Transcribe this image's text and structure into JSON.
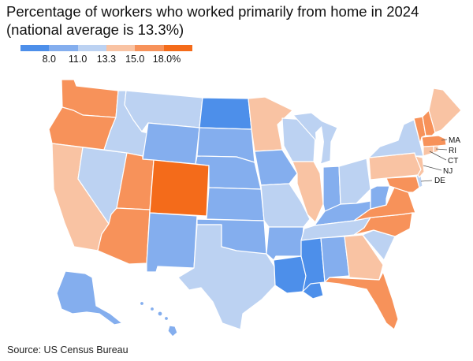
{
  "title": "Percentage of workers who worked primarily from home in 2024 (national average is 13.3%)",
  "source": "Source: US Census Bureau",
  "legend": {
    "colors": [
      "#4d8fea",
      "#84aeee",
      "#bcd2f2",
      "#f9c3a3",
      "#f7925a",
      "#f46b1a"
    ],
    "labels": [
      "8.0",
      "11.0",
      "13.3",
      "15.0",
      "18.0%"
    ]
  },
  "callouts": [
    "MA",
    "RI",
    "CT",
    "NJ",
    "DE"
  ],
  "map_data": {
    "type": "choropleth",
    "bins": [
      "< 8.0",
      "8.0–11.0",
      "11.0–13.3",
      "13.3–15.0",
      "15.0–18.0",
      "> 18.0"
    ],
    "states": {
      "WA": 4,
      "OR": 4,
      "CA": 3,
      "NV": 2,
      "ID": 2,
      "MT": 2,
      "WY": 1,
      "UT": 4,
      "AZ": 4,
      "CO": 5,
      "NM": 1,
      "ND": 0,
      "SD": 1,
      "NE": 1,
      "KS": 1,
      "OK": 1,
      "TX": 2,
      "MN": 3,
      "IA": 1,
      "MO": 2,
      "AR": 1,
      "LA": 0,
      "WI": 2,
      "IL": 3,
      "MI": 2,
      "IN": 1,
      "OH": 2,
      "KY": 1,
      "TN": 2,
      "MS": 0,
      "AL": 1,
      "GA": 3,
      "FL": 4,
      "SC": 2,
      "NC": 4,
      "VA": 4,
      "WV": 1,
      "MD": 4,
      "DE": 2,
      "PA": 3,
      "NJ": 3,
      "NY": 2,
      "CT": 3,
      "RI": 3,
      "MA": 4,
      "VT": 4,
      "NH": 4,
      "ME": 3,
      "AK": 1,
      "HI": 1
    }
  }
}
